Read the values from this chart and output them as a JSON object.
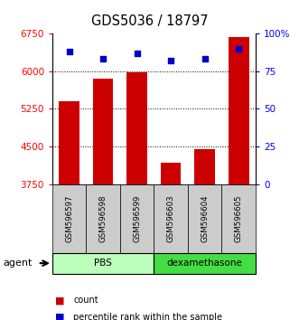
{
  "title": "GDS5036 / 18797",
  "samples": [
    "GSM596597",
    "GSM596598",
    "GSM596599",
    "GSM596603",
    "GSM596604",
    "GSM596605"
  ],
  "counts": [
    5400,
    5850,
    5975,
    4175,
    4450,
    6680
  ],
  "percentiles": [
    88,
    83,
    87,
    82,
    83,
    90
  ],
  "ylim_left": [
    3750,
    6750
  ],
  "ylim_right": [
    0,
    100
  ],
  "yticks_left": [
    3750,
    4500,
    5250,
    6000,
    6750
  ],
  "yticks_right": [
    0,
    25,
    50,
    75,
    100
  ],
  "ytick_labels_right": [
    "0",
    "25",
    "50",
    "75",
    "100%"
  ],
  "bar_color": "#cc0000",
  "dot_color": "#0000cc",
  "groups": [
    {
      "label": "PBS",
      "indices": [
        0,
        1,
        2
      ],
      "color": "#bbffbb"
    },
    {
      "label": "dexamethasone",
      "indices": [
        3,
        4,
        5
      ],
      "color": "#44dd44"
    }
  ],
  "agent_label": "agent",
  "legend_count_label": "count",
  "legend_pct_label": "percentile rank within the sample",
  "background_color": "#ffffff"
}
